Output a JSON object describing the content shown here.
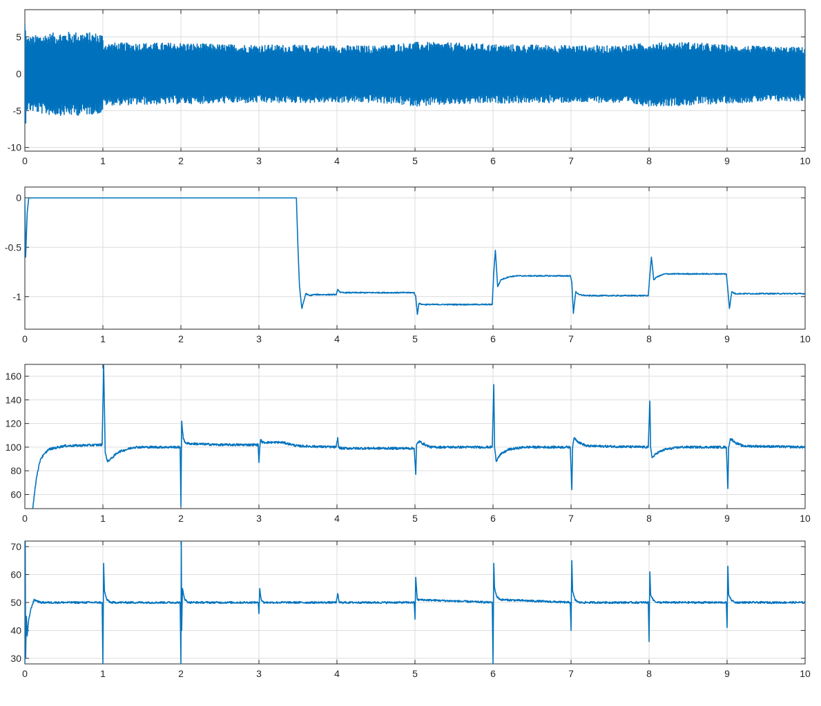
{
  "chart_data": [
    {
      "type": "line",
      "title": "",
      "xlabel": "",
      "ylabel": "",
      "xlim": [
        0,
        10
      ],
      "ylim": [
        -10.5,
        8.7
      ],
      "xticks": [
        0,
        1,
        2,
        3,
        4,
        5,
        6,
        7,
        8,
        9,
        10
      ],
      "yticks": [
        -10,
        -5,
        0,
        5
      ],
      "grid": true,
      "legend": "none",
      "color": "#0072BD",
      "signal": "dense oscillation around 0",
      "envelope": {
        "x": [
          0,
          0.02,
          0.3,
          0.6,
          0.99,
          1.01,
          2.0,
          2.5,
          4.5,
          5.0,
          5.5,
          6.0,
          7.5,
          8.0,
          8.5,
          9.0,
          9.5,
          10.0
        ],
        "upper": [
          7.5,
          5.0,
          5.5,
          5.7,
          5.5,
          4.2,
          4.2,
          4.0,
          3.8,
          4.3,
          4.2,
          4.0,
          3.8,
          4.2,
          4.3,
          3.9,
          3.7,
          3.6
        ],
        "lower": [
          -9.0,
          -5.0,
          -5.6,
          -5.7,
          -5.4,
          -4.3,
          -4.1,
          -4.0,
          -3.9,
          -4.4,
          -4.2,
          -4.0,
          -3.9,
          -4.4,
          -4.3,
          -4.0,
          -3.8,
          -3.7
        ]
      }
    },
    {
      "type": "line",
      "title": "",
      "xlabel": "",
      "ylabel": "",
      "xlim": [
        0,
        10
      ],
      "ylim": [
        -1.33,
        0.11
      ],
      "xticks": [
        0,
        1,
        2,
        3,
        4,
        5,
        6,
        7,
        8,
        9,
        10
      ],
      "yticks": [
        -1,
        -0.5,
        0
      ],
      "grid": true,
      "legend": "none",
      "color": "#0072BD",
      "x": [
        0,
        0.01,
        0.03,
        0.05,
        3.48,
        3.5,
        3.52,
        3.55,
        3.6,
        3.65,
        3.7,
        3.99,
        4.01,
        4.05,
        4.1,
        4.99,
        5.01,
        5.03,
        5.05,
        5.1,
        5.99,
        6.01,
        6.03,
        6.06,
        6.1,
        6.2,
        6.3,
        6.99,
        7.01,
        7.03,
        7.06,
        7.1,
        7.2,
        7.99,
        8.01,
        8.03,
        8.06,
        8.1,
        8.2,
        8.3,
        8.99,
        9.01,
        9.03,
        9.06,
        9.1,
        9.2,
        10
      ],
      "y": [
        0,
        -0.6,
        -0.15,
        0,
        0,
        -0.5,
        -0.9,
        -1.12,
        -0.97,
        -0.99,
        -0.98,
        -0.98,
        -0.93,
        -0.96,
        -0.96,
        -0.96,
        -1.0,
        -1.18,
        -1.07,
        -1.08,
        -1.08,
        -0.75,
        -0.53,
        -0.9,
        -0.83,
        -0.8,
        -0.79,
        -0.79,
        -0.85,
        -1.17,
        -0.95,
        -0.98,
        -0.99,
        -0.99,
        -0.78,
        -0.6,
        -0.83,
        -0.8,
        -0.77,
        -0.77,
        -0.77,
        -0.93,
        -1.12,
        -0.95,
        -0.97,
        -0.97,
        -0.97
      ]
    },
    {
      "type": "line",
      "title": "",
      "xlabel": "",
      "ylabel": "",
      "xlim": [
        0,
        10
      ],
      "ylim": [
        48,
        170
      ],
      "xticks": [
        0,
        1,
        2,
        3,
        4,
        5,
        6,
        7,
        8,
        9,
        10
      ],
      "yticks": [
        60,
        80,
        100,
        120,
        140,
        160
      ],
      "grid": true,
      "legend": "none",
      "color": "#0072BD",
      "x": [
        0.1,
        0.15,
        0.2,
        0.3,
        0.5,
        0.99,
        1.01,
        1.03,
        1.06,
        1.1,
        1.2,
        1.4,
        1.99,
        2.0,
        2.01,
        2.03,
        2.05,
        2.1,
        2.5,
        2.99,
        3.0,
        3.01,
        3.02,
        3.05,
        3.1,
        3.3,
        3.5,
        3.99,
        4.01,
        4.02,
        4.05,
        4.99,
        5.01,
        5.02,
        5.05,
        5.1,
        5.2,
        5.99,
        6.01,
        6.02,
        6.04,
        6.07,
        6.1,
        6.2,
        6.4,
        6.99,
        7.01,
        7.02,
        7.04,
        7.07,
        7.1,
        7.2,
        7.99,
        8.01,
        8.02,
        8.04,
        8.07,
        8.1,
        8.2,
        8.4,
        8.99,
        9.01,
        9.02,
        9.04,
        9.07,
        9.1,
        9.2,
        10
      ],
      "y": [
        48,
        75,
        90,
        98,
        101,
        102,
        170,
        95,
        88,
        90,
        96,
        100,
        100,
        50,
        122,
        108,
        104,
        103,
        102,
        102,
        87,
        99,
        106,
        104,
        104,
        104,
        101,
        100,
        108,
        100,
        99,
        99,
        77,
        102,
        105,
        103,
        100,
        100,
        153,
        100,
        88,
        92,
        94,
        98,
        100,
        100,
        64,
        100,
        108,
        106,
        104,
        101,
        100,
        139,
        100,
        91,
        93,
        95,
        98,
        100,
        100,
        65,
        100,
        107,
        106,
        104,
        101,
        100
      ]
    },
    {
      "type": "line",
      "title": "",
      "xlabel": "",
      "ylabel": "",
      "xlim": [
        0,
        10
      ],
      "ylim": [
        28,
        72
      ],
      "xticks": [
        0,
        1,
        2,
        3,
        4,
        5,
        6,
        7,
        8,
        9,
        10
      ],
      "yticks": [
        30,
        40,
        50,
        60,
        70
      ],
      "grid": true,
      "legend": "none",
      "color": "#0072BD",
      "x": [
        0.0,
        0.005,
        0.01,
        0.02,
        0.03,
        0.05,
        0.08,
        0.12,
        0.2,
        0.99,
        1.0,
        1.01,
        1.02,
        1.05,
        1.1,
        1.99,
        2.0,
        2.005,
        2.01,
        2.02,
        2.05,
        2.1,
        2.99,
        3.0,
        3.01,
        3.03,
        3.06,
        3.99,
        4.01,
        4.03,
        4.99,
        5.0,
        5.01,
        5.03,
        5.99,
        6.0,
        6.01,
        6.02,
        6.05,
        6.1,
        6.99,
        7.0,
        7.01,
        7.02,
        7.05,
        7.1,
        7.99,
        8.0,
        8.01,
        8.02,
        8.05,
        8.1,
        8.99,
        9.0,
        9.01,
        9.02,
        9.05,
        9.1,
        10
      ],
      "y": [
        28,
        72,
        30,
        45,
        38,
        44,
        48,
        51,
        50,
        50,
        28,
        64,
        54,
        51,
        50,
        50,
        28,
        72,
        40,
        55,
        51,
        50,
        50,
        46,
        55,
        51,
        50,
        50,
        53,
        50,
        50,
        44,
        59,
        51,
        50,
        28,
        64,
        55,
        52,
        51,
        50,
        40,
        65,
        54,
        51,
        50,
        50,
        36,
        61,
        53,
        51,
        50,
        50,
        41,
        63,
        53,
        51,
        50,
        50
      ]
    }
  ]
}
